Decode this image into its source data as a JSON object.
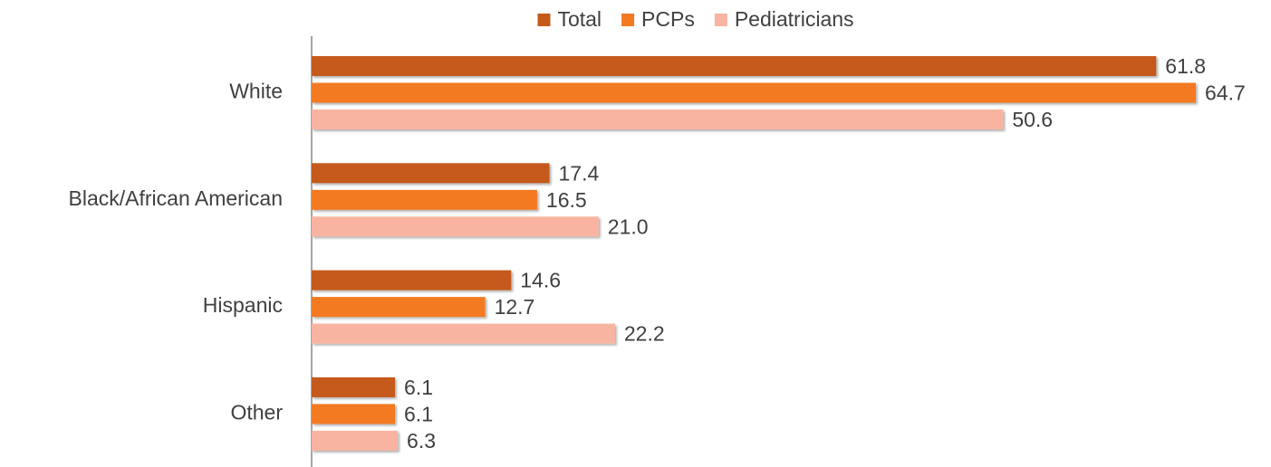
{
  "chart_data": {
    "type": "bar",
    "orientation": "horizontal",
    "categories": [
      "White",
      "Black/African American",
      "Hispanic",
      "Other"
    ],
    "series": [
      {
        "name": "Total",
        "color": "#c55a1a",
        "values": [
          61.8,
          17.4,
          14.6,
          6.1
        ]
      },
      {
        "name": "PCPs",
        "color": "#f47a22",
        "values": [
          64.7,
          16.5,
          12.7,
          6.1
        ]
      },
      {
        "name": "Pediatricians",
        "color": "#f8b4a0",
        "values": [
          50.6,
          21.0,
          22.2,
          6.3
        ]
      }
    ],
    "value_labels": [
      [
        "61.8",
        "17.4",
        "14.6",
        "6.1"
      ],
      [
        "64.7",
        "16.5",
        "12.7",
        "6.1"
      ],
      [
        "50.6",
        "21.0",
        "22.2",
        "6.3"
      ]
    ],
    "xlim": [
      0,
      70
    ],
    "legend": "top"
  }
}
